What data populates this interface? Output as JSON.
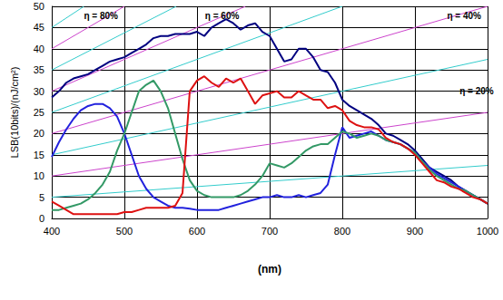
{
  "chart_data": {
    "type": "line",
    "xlabel": "(nm)",
    "ylabel": "LSB(10bits)/(nJ/cm²)",
    "xlim": [
      400,
      1000
    ],
    "xticks": [
      400,
      500,
      600,
      700,
      800,
      900,
      1000
    ],
    "ylim": [
      0,
      50
    ],
    "yticks": [
      0,
      5,
      10,
      15,
      20,
      25,
      30,
      35,
      40,
      45,
      50
    ],
    "grid": true,
    "x": [
      400,
      410,
      420,
      430,
      440,
      450,
      460,
      470,
      480,
      490,
      500,
      510,
      520,
      530,
      540,
      550,
      560,
      570,
      580,
      590,
      600,
      610,
      620,
      630,
      640,
      650,
      660,
      670,
      680,
      690,
      700,
      710,
      720,
      730,
      740,
      750,
      760,
      770,
      780,
      790,
      800,
      810,
      820,
      830,
      840,
      850,
      860,
      870,
      880,
      890,
      900,
      910,
      920,
      930,
      940,
      950,
      960,
      970,
      980,
      990,
      1000
    ],
    "series": [
      {
        "color": "#000080",
        "values": [
          28.5,
          30,
          32,
          33,
          33.5,
          34,
          35,
          36,
          37,
          37.5,
          38,
          39,
          40,
          41,
          42.5,
          43,
          43,
          43.5,
          43.5,
          43.5,
          44,
          43,
          45,
          46,
          47,
          46,
          44.5,
          45.5,
          46,
          44,
          43,
          40,
          37,
          37.5,
          40,
          40,
          38,
          35,
          34.5,
          32,
          28,
          26.5,
          25.5,
          24.5,
          23.5,
          22,
          20,
          19.5,
          18.5,
          17.5,
          16,
          14,
          12,
          11,
          10,
          9,
          7.5,
          6.5,
          5.5,
          4.5,
          3.5
        ]
      },
      {
        "color": "#2222dd",
        "values": [
          14.5,
          18,
          21,
          23.5,
          25.5,
          26.5,
          27,
          27,
          26,
          24,
          20,
          15,
          10,
          7,
          5,
          4,
          3,
          2.5,
          2.5,
          2.3,
          2,
          2,
          2,
          2,
          2.5,
          3,
          3.5,
          4,
          4.5,
          5,
          5,
          5.5,
          5,
          5,
          5.5,
          5,
          5.5,
          6,
          8,
          15,
          21.5,
          19,
          19.5,
          20,
          20.5,
          19.5,
          18.5,
          18,
          17.5,
          16.5,
          15.5,
          13.5,
          12,
          10.5,
          9.5,
          8.5,
          7.5,
          6.5,
          5.5,
          4.5,
          3.5
        ]
      },
      {
        "color": "#339966",
        "values": [
          2,
          2,
          2.5,
          3,
          3.5,
          4.5,
          6,
          8,
          11,
          16,
          20,
          25,
          30,
          31.5,
          32.5,
          30,
          26,
          20,
          14,
          9,
          6.5,
          5.5,
          5,
          5,
          5,
          5,
          5.5,
          6.5,
          8,
          10,
          13,
          12.5,
          12,
          13,
          14.5,
          16,
          17,
          17.5,
          17.5,
          19,
          20.5,
          20,
          19,
          19.5,
          20,
          19.5,
          18.5,
          18,
          17.5,
          16.5,
          15.5,
          13.5,
          11.5,
          10,
          9,
          8,
          7,
          6.5,
          5.5,
          4.5,
          3.5
        ]
      },
      {
        "color": "#dd1111",
        "values": [
          4,
          3,
          2,
          1,
          1,
          1,
          1,
          1,
          1,
          1,
          1.5,
          1.5,
          2,
          2.5,
          2.5,
          2.5,
          2.5,
          3,
          6,
          30,
          32.5,
          33.5,
          32,
          31,
          33,
          32,
          33,
          30,
          27,
          29,
          29.5,
          30,
          28.5,
          28.5,
          30,
          29,
          28,
          28,
          26,
          26.5,
          25.5,
          23,
          22,
          21.5,
          21.5,
          21,
          19,
          18,
          17.5,
          16.5,
          15,
          13,
          11,
          9,
          8.5,
          7.5,
          7,
          6,
          5,
          4.5,
          3.5
        ]
      }
    ],
    "reference_lines": [
      {
        "color": "#33cccc",
        "x": [
          400,
          1000
        ],
        "values": [
          5,
          12.5
        ]
      },
      {
        "color": "#cc44cc",
        "label": "η = 20%",
        "x": [
          400,
          1000
        ],
        "values": [
          10,
          25
        ]
      },
      {
        "color": "#33cccc",
        "x": [
          400,
          1000
        ],
        "values": [
          15,
          37.5
        ]
      },
      {
        "color": "#cc44cc",
        "label": "η = 40%",
        "x": [
          400,
          1000
        ],
        "values": [
          20,
          50
        ]
      },
      {
        "color": "#33cccc",
        "x": [
          400,
          800
        ],
        "values": [
          25,
          50
        ]
      },
      {
        "color": "#cc44cc",
        "label": "η = 60%",
        "x": [
          400,
          666.7
        ],
        "values": [
          30,
          50
        ]
      },
      {
        "color": "#33cccc",
        "x": [
          400,
          571.4
        ],
        "values": [
          35,
          50
        ]
      },
      {
        "color": "#cc44cc",
        "label": "η = 80%",
        "x": [
          400,
          500
        ],
        "values": [
          40,
          50
        ]
      },
      {
        "color": "#33cccc",
        "x": [
          400,
          444.4
        ],
        "values": [
          45,
          50
        ]
      }
    ]
  }
}
